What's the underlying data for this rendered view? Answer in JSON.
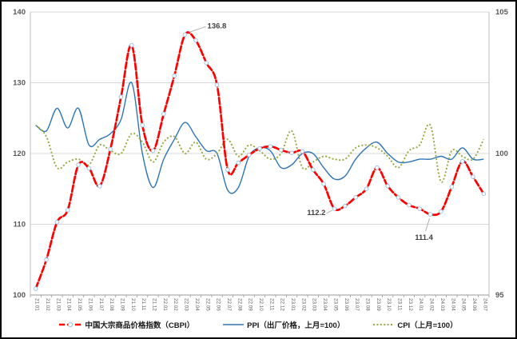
{
  "chart_data": {
    "type": "line",
    "categories": [
      "21.01",
      "21.02",
      "21.03",
      "21.04",
      "21.05",
      "21.06",
      "21.07",
      "21.08",
      "21.09",
      "21.10",
      "21.11",
      "21.12",
      "22.01",
      "22.02",
      "22.03",
      "22.04",
      "22.05",
      "22.06",
      "22.07",
      "22.08",
      "22.09",
      "22.10",
      "22.11",
      "22.12",
      "23.01",
      "23.02",
      "23.03",
      "23.04",
      "23.05",
      "23.06",
      "23.07",
      "23.08",
      "23.09",
      "23.10",
      "23.11",
      "23.12",
      "24.01",
      "24.02",
      "24.03",
      "24.04",
      "24.05",
      "24.06",
      "24.07"
    ],
    "series": [
      {
        "name": "中国大宗商品价格指数（CBPI）",
        "axis": "left",
        "color": "#FF0000",
        "style": "dashed-with-markers",
        "marker_stroke": "#9DC3E6",
        "values": [
          100.9,
          105.0,
          110.3,
          112.0,
          118.4,
          117.9,
          115.4,
          120.6,
          128.0,
          135.3,
          124.0,
          120.4,
          125.6,
          131.0,
          136.8,
          136.0,
          132.8,
          129.7,
          117.7,
          118.7,
          119.8,
          120.7,
          121.0,
          120.5,
          120.1,
          120.3,
          117.7,
          115.7,
          112.2,
          112.6,
          113.8,
          115.0,
          118.0,
          115.4,
          113.8,
          112.7,
          112.2,
          111.4,
          111.8,
          115.3,
          118.9,
          116.7,
          114.3
        ]
      },
      {
        "name": "PPI（出厂价格，上月=100）",
        "axis": "right",
        "color": "#2E75B6",
        "style": "solid",
        "values": [
          101.0,
          100.8,
          101.6,
          100.9,
          101.6,
          100.3,
          100.5,
          100.7,
          101.2,
          102.5,
          100.0,
          98.8,
          99.8,
          100.5,
          101.1,
          100.6,
          100.1,
          100.0,
          98.7,
          98.8,
          99.9,
          100.2,
          100.1,
          99.5,
          99.6,
          100.0,
          100.0,
          99.5,
          99.1,
          99.2,
          99.8,
          100.2,
          100.4,
          100.0,
          99.7,
          99.7,
          99.8,
          99.8,
          99.9,
          99.8,
          100.2,
          99.8,
          99.8
        ]
      },
      {
        "name": "CPI（上月=100）",
        "axis": "right",
        "color": "#94A93E",
        "style": "dotted",
        "values": [
          101.0,
          100.6,
          99.5,
          99.7,
          99.8,
          99.6,
          100.3,
          100.1,
          100.0,
          100.7,
          100.4,
          99.7,
          100.4,
          100.6,
          100.0,
          100.4,
          99.8,
          100.0,
          100.5,
          99.9,
          100.3,
          100.1,
          99.8,
          100.0,
          100.8,
          99.5,
          99.7,
          99.9,
          99.8,
          99.8,
          100.2,
          100.3,
          100.2,
          99.9,
          99.5,
          100.1,
          100.3,
          101.0,
          99.0,
          100.1,
          99.9,
          99.8,
          100.5
        ]
      }
    ],
    "left_axis": {
      "min": 100,
      "max": 140,
      "tick_labels": [
        "140",
        "130",
        "120",
        "110",
        "100"
      ],
      "ticks": [
        140,
        130,
        120,
        110,
        100
      ]
    },
    "right_axis": {
      "min": 95,
      "max": 105,
      "tick_labels": [
        "105",
        "100",
        "95"
      ],
      "ticks": [
        105,
        100,
        95
      ]
    },
    "annotations": [
      {
        "text": "136.8",
        "series": 0,
        "index": 14
      },
      {
        "text": "112.2",
        "series": 0,
        "index": 28
      },
      {
        "text": "111.4",
        "series": 0,
        "index": 37
      }
    ],
    "grid": true,
    "legend_position": "bottom",
    "colors": {
      "gridline": "#D9D9D9",
      "axis_line": "#BFBFBF",
      "tick_label": "#595959",
      "annotation": "#404040",
      "leader_line": "#A6A6A6"
    }
  }
}
